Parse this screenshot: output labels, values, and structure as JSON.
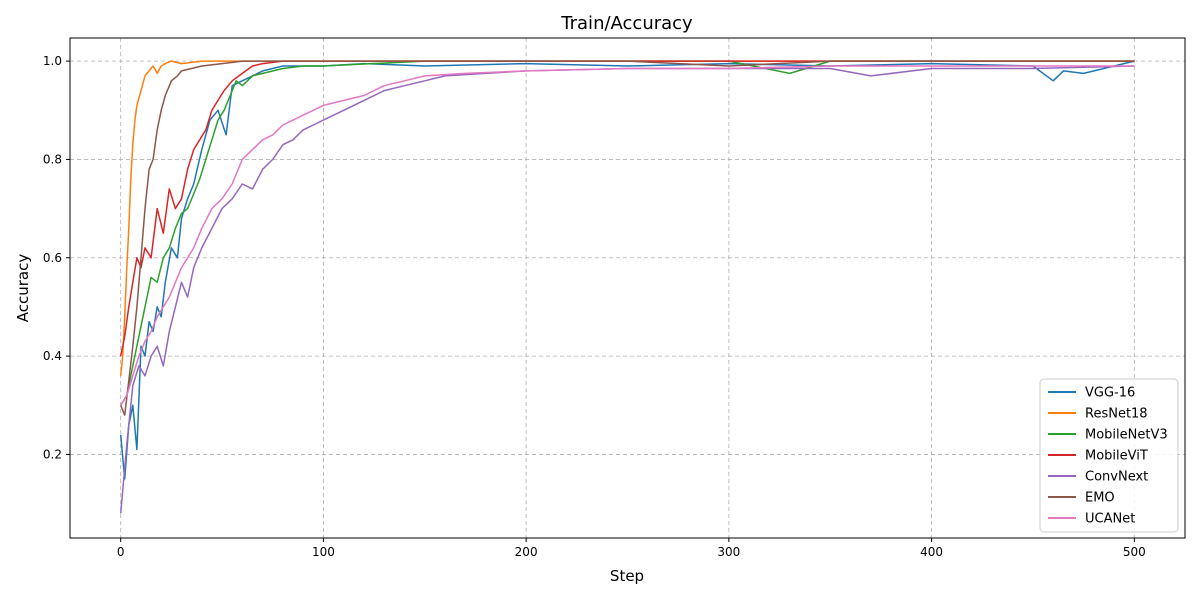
{
  "chart_data": {
    "type": "line",
    "title": "Train/Accuracy",
    "xlabel": "Step",
    "ylabel": "Accuracy",
    "xlim": [
      -25,
      525
    ],
    "ylim": [
      0.03,
      1.047
    ],
    "x_ticks": [
      0,
      100,
      200,
      300,
      400,
      500
    ],
    "x_tick_labels": [
      "0",
      "100",
      "200",
      "300",
      "400",
      "500"
    ],
    "y_ticks": [
      0.2,
      0.4,
      0.6,
      0.8,
      1.0
    ],
    "y_tick_labels": [
      "0.2",
      "0.4",
      "0.6",
      "0.8",
      "1.0"
    ],
    "grid": true,
    "legend_position": "lower-right",
    "series": [
      {
        "name": "VGG-16",
        "color": "#1f77b4",
        "points": [
          [
            0,
            0.24
          ],
          [
            2,
            0.15
          ],
          [
            4,
            0.26
          ],
          [
            6,
            0.3
          ],
          [
            8,
            0.21
          ],
          [
            10,
            0.42
          ],
          [
            12,
            0.4
          ],
          [
            14,
            0.47
          ],
          [
            16,
            0.45
          ],
          [
            18,
            0.5
          ],
          [
            20,
            0.48
          ],
          [
            22,
            0.55
          ],
          [
            25,
            0.62
          ],
          [
            28,
            0.6
          ],
          [
            30,
            0.68
          ],
          [
            33,
            0.72
          ],
          [
            36,
            0.75
          ],
          [
            40,
            0.82
          ],
          [
            44,
            0.88
          ],
          [
            48,
            0.9
          ],
          [
            52,
            0.85
          ],
          [
            55,
            0.95
          ],
          [
            60,
            0.96
          ],
          [
            65,
            0.97
          ],
          [
            70,
            0.98
          ],
          [
            80,
            0.99
          ],
          [
            90,
            0.99
          ],
          [
            100,
            0.99
          ],
          [
            120,
            0.995
          ],
          [
            150,
            0.99
          ],
          [
            200,
            0.995
          ],
          [
            250,
            0.99
          ],
          [
            300,
            0.995
          ],
          [
            350,
            0.99
          ],
          [
            400,
            0.995
          ],
          [
            450,
            0.99
          ],
          [
            460,
            0.96
          ],
          [
            465,
            0.98
          ],
          [
            475,
            0.975
          ],
          [
            500,
            1.0
          ]
        ]
      },
      {
        "name": "ResNet18",
        "color": "#ff7f0e",
        "points": [
          [
            0,
            0.36
          ],
          [
            1,
            0.4
          ],
          [
            2,
            0.48
          ],
          [
            3,
            0.58
          ],
          [
            4,
            0.66
          ],
          [
            5,
            0.76
          ],
          [
            6,
            0.83
          ],
          [
            7,
            0.88
          ],
          [
            8,
            0.91
          ],
          [
            10,
            0.94
          ],
          [
            12,
            0.97
          ],
          [
            14,
            0.98
          ],
          [
            16,
            0.99
          ],
          [
            18,
            0.975
          ],
          [
            20,
            0.99
          ],
          [
            22,
            0.995
          ],
          [
            25,
            1.0
          ],
          [
            30,
            0.995
          ],
          [
            40,
            1.0
          ],
          [
            60,
            1.0
          ],
          [
            100,
            1.0
          ],
          [
            200,
            1.0
          ],
          [
            300,
            1.0
          ],
          [
            400,
            1.0
          ],
          [
            500,
            1.0
          ]
        ]
      },
      {
        "name": "MobileNetV3",
        "color": "#2ca02c",
        "points": [
          [
            0,
            0.3
          ],
          [
            3,
            0.32
          ],
          [
            6,
            0.38
          ],
          [
            9,
            0.44
          ],
          [
            12,
            0.5
          ],
          [
            15,
            0.56
          ],
          [
            18,
            0.55
          ],
          [
            21,
            0.6
          ],
          [
            24,
            0.62
          ],
          [
            27,
            0.66
          ],
          [
            30,
            0.69
          ],
          [
            33,
            0.7
          ],
          [
            36,
            0.73
          ],
          [
            39,
            0.76
          ],
          [
            42,
            0.8
          ],
          [
            45,
            0.84
          ],
          [
            48,
            0.88
          ],
          [
            51,
            0.9
          ],
          [
            54,
            0.93
          ],
          [
            57,
            0.96
          ],
          [
            60,
            0.95
          ],
          [
            65,
            0.97
          ],
          [
            70,
            0.975
          ],
          [
            80,
            0.985
          ],
          [
            90,
            0.99
          ],
          [
            100,
            0.99
          ],
          [
            150,
            1.0
          ],
          [
            200,
            1.0
          ],
          [
            250,
            1.0
          ],
          [
            300,
            1.0
          ],
          [
            330,
            0.975
          ],
          [
            350,
            1.0
          ],
          [
            400,
            1.0
          ],
          [
            450,
            1.0
          ],
          [
            500,
            1.0
          ]
        ]
      },
      {
        "name": "MobileViT",
        "color": "#d62728",
        "points": [
          [
            0,
            0.4
          ],
          [
            2,
            0.44
          ],
          [
            4,
            0.5
          ],
          [
            6,
            0.55
          ],
          [
            8,
            0.6
          ],
          [
            10,
            0.58
          ],
          [
            12,
            0.62
          ],
          [
            15,
            0.6
          ],
          [
            18,
            0.7
          ],
          [
            21,
            0.65
          ],
          [
            24,
            0.74
          ],
          [
            27,
            0.7
          ],
          [
            30,
            0.72
          ],
          [
            33,
            0.78
          ],
          [
            36,
            0.82
          ],
          [
            39,
            0.84
          ],
          [
            42,
            0.86
          ],
          [
            45,
            0.9
          ],
          [
            48,
            0.92
          ],
          [
            51,
            0.94
          ],
          [
            55,
            0.96
          ],
          [
            60,
            0.975
          ],
          [
            65,
            0.99
          ],
          [
            70,
            0.995
          ],
          [
            80,
            1.0
          ],
          [
            100,
            1.0
          ],
          [
            150,
            1.0
          ],
          [
            200,
            1.0
          ],
          [
            300,
            1.0
          ],
          [
            400,
            1.0
          ],
          [
            500,
            1.0
          ]
        ]
      },
      {
        "name": "ConvNext",
        "color": "#9467bd",
        "points": [
          [
            0,
            0.08
          ],
          [
            3,
            0.22
          ],
          [
            6,
            0.34
          ],
          [
            9,
            0.38
          ],
          [
            12,
            0.36
          ],
          [
            15,
            0.4
          ],
          [
            18,
            0.42
          ],
          [
            21,
            0.38
          ],
          [
            24,
            0.45
          ],
          [
            27,
            0.5
          ],
          [
            30,
            0.55
          ],
          [
            33,
            0.52
          ],
          [
            36,
            0.58
          ],
          [
            40,
            0.62
          ],
          [
            45,
            0.66
          ],
          [
            50,
            0.7
          ],
          [
            55,
            0.72
          ],
          [
            60,
            0.75
          ],
          [
            65,
            0.74
          ],
          [
            70,
            0.78
          ],
          [
            75,
            0.8
          ],
          [
            80,
            0.83
          ],
          [
            85,
            0.84
          ],
          [
            90,
            0.86
          ],
          [
            95,
            0.87
          ],
          [
            100,
            0.88
          ],
          [
            110,
            0.9
          ],
          [
            120,
            0.92
          ],
          [
            130,
            0.94
          ],
          [
            140,
            0.95
          ],
          [
            150,
            0.96
          ],
          [
            160,
            0.97
          ],
          [
            180,
            0.975
          ],
          [
            200,
            0.98
          ],
          [
            250,
            0.985
          ],
          [
            300,
            0.985
          ],
          [
            350,
            0.985
          ],
          [
            370,
            0.97
          ],
          [
            400,
            0.985
          ],
          [
            450,
            0.985
          ],
          [
            500,
            0.99
          ]
        ]
      },
      {
        "name": "EMO",
        "color": "#8c564b",
        "points": [
          [
            0,
            0.3
          ],
          [
            2,
            0.28
          ],
          [
            4,
            0.35
          ],
          [
            6,
            0.42
          ],
          [
            8,
            0.5
          ],
          [
            10,
            0.6
          ],
          [
            12,
            0.7
          ],
          [
            14,
            0.78
          ],
          [
            16,
            0.8
          ],
          [
            18,
            0.86
          ],
          [
            20,
            0.9
          ],
          [
            22,
            0.93
          ],
          [
            25,
            0.96
          ],
          [
            28,
            0.97
          ],
          [
            30,
            0.98
          ],
          [
            35,
            0.985
          ],
          [
            40,
            0.99
          ],
          [
            50,
            0.995
          ],
          [
            60,
            1.0
          ],
          [
            100,
            1.0
          ],
          [
            150,
            1.0
          ],
          [
            200,
            1.0
          ],
          [
            250,
            1.0
          ],
          [
            300,
            0.99
          ],
          [
            350,
            1.0
          ],
          [
            400,
            1.0
          ],
          [
            450,
            1.0
          ],
          [
            500,
            1.0
          ]
        ]
      },
      {
        "name": "UCANet",
        "color": "#e377c2",
        "points": [
          [
            0,
            0.3
          ],
          [
            3,
            0.32
          ],
          [
            6,
            0.36
          ],
          [
            9,
            0.4
          ],
          [
            12,
            0.43
          ],
          [
            15,
            0.45
          ],
          [
            18,
            0.48
          ],
          [
            21,
            0.5
          ],
          [
            24,
            0.52
          ],
          [
            27,
            0.55
          ],
          [
            30,
            0.58
          ],
          [
            33,
            0.6
          ],
          [
            36,
            0.62
          ],
          [
            40,
            0.66
          ],
          [
            45,
            0.7
          ],
          [
            50,
            0.72
          ],
          [
            55,
            0.75
          ],
          [
            60,
            0.8
          ],
          [
            65,
            0.82
          ],
          [
            70,
            0.84
          ],
          [
            75,
            0.85
          ],
          [
            80,
            0.87
          ],
          [
            90,
            0.89
          ],
          [
            100,
            0.91
          ],
          [
            110,
            0.92
          ],
          [
            120,
            0.93
          ],
          [
            130,
            0.95
          ],
          [
            140,
            0.96
          ],
          [
            150,
            0.97
          ],
          [
            170,
            0.975
          ],
          [
            200,
            0.98
          ],
          [
            250,
            0.985
          ],
          [
            300,
            0.985
          ],
          [
            350,
            0.99
          ],
          [
            400,
            0.99
          ],
          [
            450,
            0.99
          ],
          [
            500,
            0.99
          ]
        ]
      }
    ]
  }
}
